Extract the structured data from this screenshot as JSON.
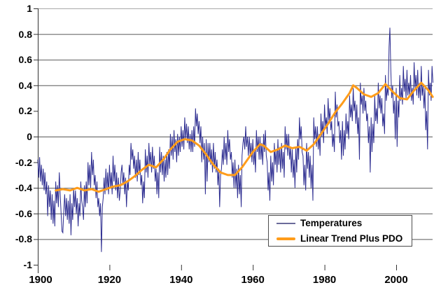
{
  "chart_data": {
    "type": "line",
    "title": "",
    "xlabel": "",
    "ylabel": "",
    "x_axis": {
      "range": [
        1900,
        2010.3
      ],
      "ticks": [
        {
          "year": 1900,
          "label": "1900"
        },
        {
          "year": 1920,
          "label": "1920"
        },
        {
          "year": 1940,
          "label": "1940"
        },
        {
          "year": 1960,
          "label": "1960"
        },
        {
          "year": 1980,
          "label": "1980"
        },
        {
          "year": 2000,
          "label": "2000"
        }
      ]
    },
    "y_axis": {
      "range": [
        -1,
        1
      ],
      "tick_values": [
        1,
        0.8,
        0.6,
        0.4,
        0.2,
        0,
        -0.2,
        -0.4,
        -0.6,
        -0.8,
        -1
      ],
      "tick_labels": [
        "1",
        "0.8",
        "0.6",
        "0.4",
        "0.2",
        "0",
        "-0.2",
        "-0.4",
        "-0.6",
        "-0.8",
        "-1"
      ],
      "gridline_values": [
        1,
        0.8,
        0.6,
        0.4,
        0,
        -0.4,
        -0.6,
        -0.8
      ]
    },
    "style": {
      "grid_color": "#595959",
      "grid_color_top": "#a9a9a9",
      "axis_color": "#333333",
      "background": "#ffffff"
    },
    "legend": {
      "position": "inside-bottom-right",
      "border_color": "#4d4d4d"
    },
    "series": [
      {
        "name": "Temperatures",
        "color": "#2b2b8f",
        "width": 1,
        "x_start": 1900.0,
        "x_step": 0.25,
        "values": [
          -0.18,
          -0.32,
          -0.16,
          -0.35,
          -0.22,
          -0.38,
          -0.25,
          -0.42,
          -0.28,
          -0.45,
          -0.35,
          -0.62,
          -0.38,
          -0.55,
          -0.42,
          -0.65,
          -0.45,
          -0.68,
          -0.5,
          -0.7,
          -0.35,
          -0.52,
          -0.38,
          -0.55,
          -0.28,
          -0.45,
          -0.6,
          -0.74,
          -0.75,
          -0.58,
          -0.45,
          -0.62,
          -0.48,
          -0.65,
          -0.5,
          -0.68,
          -0.45,
          -0.77,
          -0.52,
          -0.65,
          -0.4,
          -0.55,
          -0.42,
          -0.6,
          -0.48,
          -0.7,
          -0.52,
          -0.62,
          -0.35,
          -0.5,
          -0.55,
          -0.65,
          -0.38,
          -0.55,
          -0.35,
          -0.52,
          -0.2,
          -0.38,
          -0.22,
          -0.4,
          -0.12,
          -0.3,
          -0.18,
          -0.38,
          -0.3,
          -0.48,
          -0.35,
          -0.55,
          -0.48,
          -0.62,
          -0.52,
          -0.9,
          -0.55,
          -0.48,
          -0.32,
          -0.45,
          -0.25,
          -0.42,
          -0.28,
          -0.45,
          -0.22,
          -0.4,
          -0.28,
          -0.45,
          -0.15,
          -0.35,
          -0.22,
          -0.42,
          -0.28,
          -0.48,
          -0.32,
          -0.5,
          -0.42,
          -0.28,
          -0.22,
          -0.38,
          -0.28,
          -0.45,
          -0.32,
          -0.55,
          -0.35,
          -0.42,
          -0.22,
          -0.3,
          -0.05,
          -0.18,
          -0.1,
          -0.25,
          -0.15,
          -0.32,
          -0.18,
          -0.35,
          -0.12,
          -0.3,
          -0.18,
          -0.38,
          -0.3,
          -0.52,
          -0.35,
          -0.48,
          -0.1,
          -0.28,
          -0.15,
          -0.32,
          -0.05,
          -0.22,
          -0.12,
          -0.28,
          -0.08,
          -0.25,
          -0.15,
          -0.35,
          -0.25,
          -0.45,
          -0.28,
          -0.48,
          -0.08,
          -0.28,
          -0.12,
          -0.3,
          -0.15,
          -0.35,
          -0.18,
          -0.32,
          -0.12,
          -0.3,
          -0.1,
          -0.25,
          0.02,
          -0.15,
          0.0,
          -0.18,
          0.05,
          -0.12,
          -0.02,
          -0.2,
          0.02,
          -0.15,
          0.0,
          -0.12,
          0.08,
          -0.08,
          0.05,
          -0.1,
          0.15,
          -0.02,
          0.1,
          -0.05,
          0.08,
          -0.1,
          0.02,
          -0.12,
          0.05,
          -0.12,
          0.08,
          -0.08,
          0.22,
          0.08,
          0.18,
          0.02,
          0.12,
          -0.05,
          0.08,
          -0.2,
          0.0,
          -0.18,
          -0.05,
          -0.45,
          -0.02,
          -0.35,
          -0.05,
          -0.2,
          -0.05,
          -0.22,
          -0.1,
          -0.28,
          -0.05,
          -0.25,
          -0.12,
          -0.28,
          -0.18,
          -0.38,
          -0.25,
          -0.55,
          -0.3,
          -0.25,
          -0.1,
          -0.22,
          0.0,
          -0.18,
          -0.05,
          -0.22,
          0.05,
          -0.12,
          -0.02,
          -0.18,
          -0.12,
          -0.32,
          -0.2,
          -0.4,
          -0.18,
          -0.4,
          -0.25,
          -0.48,
          -0.22,
          -0.45,
          -0.3,
          -0.55,
          -0.15,
          -0.05,
          0.0,
          -0.1,
          0.08,
          -0.08,
          0.0,
          -0.15,
          0.0,
          -0.15,
          -0.05,
          -0.2,
          -0.02,
          -0.22,
          -0.1,
          -0.28,
          0.05,
          -0.12,
          0.0,
          -0.18,
          0.0,
          -0.18,
          -0.05,
          -0.22,
          0.02,
          -0.12,
          0.05,
          -0.15,
          -0.2,
          -0.42,
          -0.28,
          -0.5,
          -0.15,
          -0.35,
          -0.2,
          -0.38,
          -0.05,
          -0.22,
          -0.1,
          -0.28,
          -0.02,
          -0.22,
          -0.08,
          -0.28,
          -0.05,
          -0.25,
          -0.12,
          -0.32,
          0.08,
          -0.1,
          0.02,
          -0.15,
          0.02,
          -0.18,
          -0.08,
          -0.28,
          -0.1,
          -0.32,
          -0.18,
          -0.4,
          -0.08,
          -0.28,
          -0.02,
          -0.18,
          0.15,
          -0.02,
          0.08,
          -0.12,
          -0.15,
          -0.38,
          -0.22,
          -0.42,
          -0.05,
          -0.25,
          -0.12,
          -0.32,
          -0.15,
          -0.4,
          -0.22,
          -0.5,
          0.15,
          -0.02,
          0.08,
          -0.08,
          0.08,
          -0.1,
          0.02,
          -0.15,
          0.18,
          0.0,
          0.12,
          -0.05,
          0.25,
          0.08,
          0.15,
          0.02,
          0.3,
          0.12,
          0.22,
          0.05,
          0.12,
          -0.08,
          0.02,
          -0.12,
          0.35,
          0.15,
          0.25,
          0.08,
          0.12,
          -0.05,
          0.05,
          -0.18,
          0.12,
          -0.15,
          0.05,
          -0.1,
          0.18,
          0.02,
          0.12,
          -0.02,
          0.32,
          0.15,
          0.25,
          0.12,
          0.38,
          0.2,
          0.28,
          0.1,
          0.25,
          0.02,
          0.15,
          -0.18,
          0.42,
          0.25,
          0.32,
          0.18,
          0.38,
          0.2,
          0.28,
          0.12,
          0.18,
          -0.05,
          0.08,
          -0.28,
          0.15,
          -0.12,
          0.1,
          -0.05,
          0.32,
          0.12,
          0.22,
          0.1,
          0.42,
          0.22,
          0.32,
          0.18,
          0.3,
          0.08,
          0.18,
          0.02,
          0.48,
          0.28,
          0.38,
          0.32,
          0.7,
          0.85,
          0.52,
          0.3,
          0.4,
          0.18,
          0.28,
          -0.02,
          0.38,
          -0.08,
          0.28,
          0.15,
          0.48,
          0.28,
          0.38,
          0.25,
          0.55,
          0.35,
          0.45,
          0.3,
          0.52,
          0.32,
          0.42,
          0.32,
          0.48,
          0.28,
          0.38,
          0.25,
          0.58,
          0.38,
          0.48,
          0.32,
          0.52,
          0.3,
          0.42,
          0.28,
          0.55,
          0.32,
          0.4,
          0.22,
          0.38,
          0.05,
          0.2,
          -0.1,
          0.52,
          0.32,
          0.42,
          0.28,
          0.55,
          0.42
        ]
      },
      {
        "name": "Linear Trend Plus PDO",
        "color": "#ff9c1a",
        "width": 3,
        "points": [
          [
            1905,
            -0.42
          ],
          [
            1907,
            -0.41
          ],
          [
            1909,
            -0.42
          ],
          [
            1911,
            -0.4
          ],
          [
            1913,
            -0.42
          ],
          [
            1915,
            -0.41
          ],
          [
            1917,
            -0.43
          ],
          [
            1919,
            -0.41
          ],
          [
            1921,
            -0.39
          ],
          [
            1923,
            -0.38
          ],
          [
            1925,
            -0.35
          ],
          [
            1927,
            -0.31
          ],
          [
            1929,
            -0.26
          ],
          [
            1930,
            -0.24
          ],
          [
            1931,
            -0.22
          ],
          [
            1933,
            -0.24
          ],
          [
            1935,
            -0.18
          ],
          [
            1937,
            -0.1
          ],
          [
            1939,
            -0.04
          ],
          [
            1941,
            -0.02
          ],
          [
            1943,
            -0.03
          ],
          [
            1945,
            -0.07
          ],
          [
            1947,
            -0.14
          ],
          [
            1949,
            -0.22
          ],
          [
            1951,
            -0.28
          ],
          [
            1953,
            -0.3
          ],
          [
            1955,
            -0.3
          ],
          [
            1957,
            -0.24
          ],
          [
            1959,
            -0.16
          ],
          [
            1960,
            -0.12
          ],
          [
            1961,
            -0.09
          ],
          [
            1962,
            -0.06
          ],
          [
            1963,
            -0.07
          ],
          [
            1965,
            -0.12
          ],
          [
            1967,
            -0.1
          ],
          [
            1969,
            -0.07
          ],
          [
            1971,
            -0.09
          ],
          [
            1973,
            -0.08
          ],
          [
            1975,
            -0.11
          ],
          [
            1977,
            -0.06
          ],
          [
            1979,
            0.02
          ],
          [
            1981,
            0.1
          ],
          [
            1983,
            0.19
          ],
          [
            1985,
            0.26
          ],
          [
            1987,
            0.34
          ],
          [
            1988,
            0.4
          ],
          [
            1989,
            0.38
          ],
          [
            1991,
            0.33
          ],
          [
            1993,
            0.31
          ],
          [
            1995,
            0.34
          ],
          [
            1997,
            0.41
          ],
          [
            1999,
            0.35
          ],
          [
            2001,
            0.3
          ],
          [
            2003,
            0.29
          ],
          [
            2005,
            0.36
          ],
          [
            2007,
            0.42
          ],
          [
            2009,
            0.36
          ],
          [
            2010.2,
            0.31
          ]
        ]
      }
    ]
  }
}
